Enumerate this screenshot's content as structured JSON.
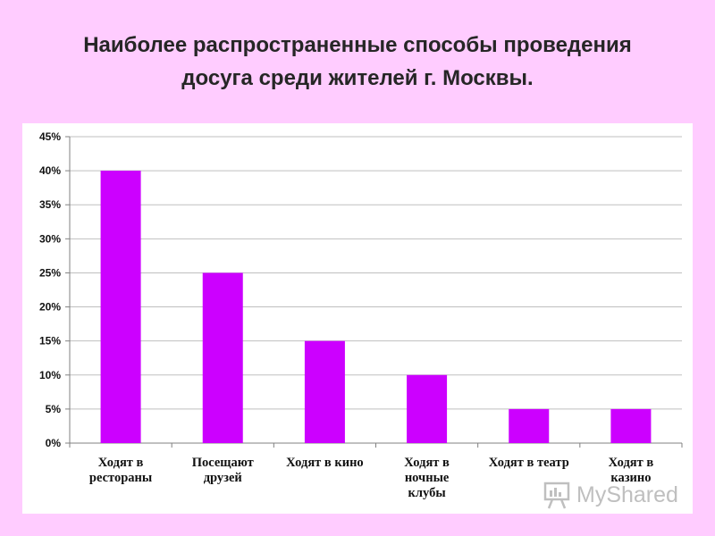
{
  "title": {
    "line1": "Наиболее распространенные способы проведения",
    "line2": "досуга среди жителей г. Москвы."
  },
  "colors": {
    "background": "#ffccff",
    "bar": "#cc00ff",
    "grid": "#bfbfbf"
  },
  "watermark": {
    "text": "MyShared",
    "icon": "presentation-board-icon"
  },
  "chart_data": {
    "type": "bar",
    "categories": [
      [
        "Ходят в",
        "рестораны"
      ],
      [
        "Посещают",
        "друзей"
      ],
      [
        "Ходят в кино"
      ],
      [
        "Ходят в",
        "ночные",
        "клубы"
      ],
      [
        "Ходят в театр"
      ],
      [
        "Ходят в",
        "казино"
      ]
    ],
    "values": [
      40,
      25,
      15,
      10,
      5,
      5
    ],
    "ylim": [
      0,
      45
    ],
    "yticks": [
      "0%",
      "5%",
      "10%",
      "15%",
      "20%",
      "25%",
      "30%",
      "35%",
      "40%",
      "45%"
    ],
    "grid": true,
    "legend": "none",
    "title": "",
    "xlabel": "",
    "ylabel": ""
  }
}
